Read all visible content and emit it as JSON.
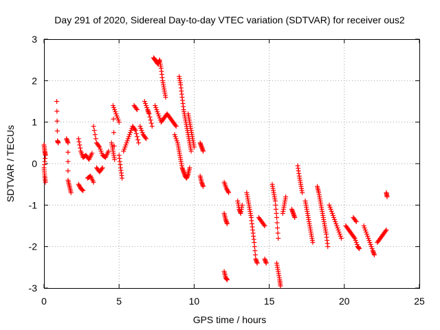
{
  "chart_data": {
    "type": "scatter",
    "title": "Day 291 of 2020, Sidereal Day-to-day VTEC variation (SDTVAR) for receiver ous2",
    "xlabel": "GPS time / hours",
    "ylabel": "SDTVAR / TECUs",
    "xlim": [
      0,
      25
    ],
    "ylim": [
      -3,
      3
    ],
    "xticks": [
      0,
      5,
      10,
      15,
      20,
      25
    ],
    "yticks": [
      -3,
      -2,
      -1,
      0,
      1,
      2,
      3
    ],
    "grid": true,
    "marker": "+",
    "series": [
      {
        "name": "SDTVAR",
        "color": "#ff0000",
        "segments": [
          [
            [
              0.0,
              0.45
            ],
            [
              0.05,
              0.3
            ],
            [
              0.1,
              0.2
            ],
            [
              0.0,
              -0.1
            ],
            [
              0.05,
              -0.3
            ],
            [
              0.1,
              -0.45
            ]
          ],
          [
            [
              0.85,
              1.5
            ],
            [
              0.9,
              0.55
            ],
            [
              0.95,
              0.5
            ]
          ],
          [
            [
              1.5,
              0.6
            ],
            [
              1.6,
              0.5
            ],
            [
              1.6,
              -0.4
            ],
            [
              1.7,
              -0.55
            ],
            [
              1.8,
              -0.7
            ]
          ],
          [
            [
              2.3,
              -0.5
            ],
            [
              2.45,
              -0.6
            ],
            [
              2.6,
              -0.65
            ]
          ],
          [
            [
              2.3,
              0.6
            ],
            [
              2.45,
              0.3
            ],
            [
              2.6,
              0.15
            ],
            [
              2.8,
              0.2
            ],
            [
              3.0,
              0.1
            ],
            [
              3.2,
              0.25
            ]
          ],
          [
            [
              2.9,
              -0.35
            ],
            [
              3.1,
              -0.3
            ],
            [
              3.3,
              -0.45
            ]
          ],
          [
            [
              3.3,
              0.9
            ],
            [
              3.5,
              0.5
            ],
            [
              3.7,
              0.4
            ],
            [
              3.9,
              0.2
            ],
            [
              4.1,
              0.15
            ],
            [
              4.3,
              0.3
            ]
          ],
          [
            [
              3.5,
              -0.1
            ],
            [
              3.7,
              -0.2
            ],
            [
              3.9,
              -0.1
            ]
          ],
          [
            [
              4.5,
              0.5
            ],
            [
              4.6,
              0.3
            ],
            [
              4.7,
              0.1
            ],
            [
              4.6,
              1.4
            ],
            [
              4.8,
              1.2
            ],
            [
              5.0,
              1.0
            ]
          ],
          [
            [
              5.0,
              0.2
            ],
            [
              5.1,
              -0.1
            ],
            [
              5.2,
              -0.35
            ]
          ],
          [
            [
              5.3,
              0.3
            ],
            [
              5.5,
              0.5
            ],
            [
              5.7,
              0.7
            ],
            [
              5.9,
              0.9
            ],
            [
              6.1,
              0.8
            ],
            [
              6.3,
              0.5
            ]
          ],
          [
            [
              6.0,
              1.4
            ],
            [
              6.2,
              1.3
            ]
          ],
          [
            [
              6.4,
              0.9
            ],
            [
              6.6,
              0.7
            ],
            [
              6.8,
              0.6
            ]
          ],
          [
            [
              6.7,
              1.5
            ],
            [
              6.9,
              1.3
            ],
            [
              7.0,
              1.2
            ],
            [
              7.2,
              0.9
            ]
          ],
          [
            [
              7.3,
              2.55
            ],
            [
              7.4,
              2.5
            ],
            [
              7.5,
              2.45
            ],
            [
              7.6,
              2.4
            ],
            [
              7.7,
              2.5
            ],
            [
              7.8,
              2.3
            ],
            [
              7.9,
              2.0
            ],
            [
              8.0,
              1.8
            ],
            [
              8.1,
              1.6
            ]
          ],
          [
            [
              7.4,
              1.4
            ],
            [
              7.6,
              1.2
            ],
            [
              7.8,
              1.0
            ],
            [
              8.0,
              1.1
            ],
            [
              8.2,
              1.2
            ],
            [
              8.4,
              1.1
            ],
            [
              8.6,
              1.0
            ],
            [
              8.8,
              0.9
            ]
          ],
          [
            [
              8.7,
              0.7
            ],
            [
              8.9,
              0.5
            ],
            [
              9.0,
              0.3
            ],
            [
              9.1,
              0.1
            ],
            [
              9.2,
              -0.1
            ],
            [
              9.3,
              -0.2
            ],
            [
              9.4,
              -0.3
            ],
            [
              9.5,
              -0.35
            ],
            [
              9.6,
              -0.25
            ],
            [
              9.7,
              -0.1
            ]
          ],
          [
            [
              9.0,
              2.1
            ],
            [
              9.1,
              1.9
            ],
            [
              9.2,
              1.6
            ],
            [
              9.3,
              1.3
            ],
            [
              9.4,
              1.1
            ],
            [
              9.5,
              0.9
            ],
            [
              9.6,
              0.7
            ],
            [
              9.7,
              0.5
            ],
            [
              9.8,
              0.3
            ]
          ],
          [
            [
              9.6,
              1.2
            ],
            [
              9.7,
              1.0
            ],
            [
              9.8,
              0.8
            ],
            [
              9.9,
              0.6
            ],
            [
              10.0,
              0.4
            ]
          ],
          [
            [
              10.4,
              0.5
            ],
            [
              10.5,
              0.4
            ],
            [
              10.6,
              0.3
            ]
          ],
          [
            [
              10.4,
              -0.3
            ],
            [
              10.5,
              -0.45
            ],
            [
              10.6,
              -0.55
            ]
          ],
          [
            [
              12.0,
              -1.2
            ],
            [
              12.1,
              -1.35
            ],
            [
              12.2,
              -1.45
            ]
          ],
          [
            [
              12.0,
              -2.6
            ],
            [
              12.1,
              -2.75
            ],
            [
              12.2,
              -2.8
            ]
          ],
          [
            [
              12.0,
              -0.45
            ],
            [
              12.15,
              -0.6
            ],
            [
              12.3,
              -0.7
            ]
          ],
          [
            [
              12.9,
              -0.9
            ],
            [
              13.0,
              -1.1
            ],
            [
              13.1,
              -1.2
            ],
            [
              13.2,
              -1.0
            ]
          ],
          [
            [
              13.5,
              -0.7
            ],
            [
              13.6,
              -0.9
            ],
            [
              13.7,
              -1.1
            ],
            [
              13.8,
              -1.3
            ],
            [
              13.9,
              -1.6
            ],
            [
              14.0,
              -1.9
            ],
            [
              14.1,
              -2.3
            ],
            [
              14.2,
              -2.4
            ]
          ],
          [
            [
              14.3,
              -1.3
            ],
            [
              14.5,
              -1.4
            ],
            [
              14.7,
              -1.5
            ]
          ],
          [
            [
              14.7,
              -2.3
            ],
            [
              14.8,
              -2.4
            ]
          ],
          [
            [
              15.2,
              -0.5
            ],
            [
              15.3,
              -0.7
            ],
            [
              15.4,
              -0.9
            ],
            [
              15.5,
              -1.3
            ],
            [
              15.6,
              -1.8
            ]
          ],
          [
            [
              15.5,
              -2.4
            ],
            [
              15.6,
              -2.6
            ],
            [
              15.7,
              -2.8
            ],
            [
              15.75,
              -2.95
            ]
          ],
          [
            [
              15.9,
              -1.2
            ],
            [
              16.0,
              -1.0
            ],
            [
              16.1,
              -0.8
            ]
          ],
          [
            [
              16.5,
              -1.1
            ],
            [
              16.6,
              -1.2
            ],
            [
              16.7,
              -1.3
            ]
          ],
          [
            [
              16.9,
              -0.05
            ],
            [
              17.0,
              -0.3
            ],
            [
              17.1,
              -0.5
            ],
            [
              17.2,
              -0.7
            ]
          ],
          [
            [
              17.4,
              -0.9
            ],
            [
              17.5,
              -1.1
            ],
            [
              17.6,
              -1.3
            ],
            [
              17.7,
              -1.5
            ],
            [
              17.8,
              -1.7
            ],
            [
              17.9,
              -1.9
            ]
          ],
          [
            [
              18.2,
              -0.55
            ],
            [
              18.3,
              -0.7
            ],
            [
              18.4,
              -0.9
            ],
            [
              18.5,
              -1.1
            ],
            [
              18.6,
              -1.3
            ],
            [
              18.7,
              -1.5
            ],
            [
              18.8,
              -1.7
            ],
            [
              18.9,
              -2.0
            ]
          ],
          [
            [
              19.0,
              -1.0
            ],
            [
              19.2,
              -1.2
            ],
            [
              19.4,
              -1.4
            ],
            [
              19.6,
              -1.6
            ],
            [
              19.8,
              -1.8
            ]
          ],
          [
            [
              20.1,
              -1.5
            ],
            [
              20.3,
              -1.6
            ],
            [
              20.5,
              -1.7
            ],
            [
              20.7,
              -1.8
            ],
            [
              20.9,
              -2.0
            ],
            [
              21.0,
              -2.05
            ]
          ],
          [
            [
              20.6,
              -1.3
            ],
            [
              20.8,
              -1.4
            ]
          ],
          [
            [
              21.3,
              -1.5
            ],
            [
              21.5,
              -1.7
            ],
            [
              21.7,
              -1.9
            ],
            [
              21.9,
              -2.1
            ],
            [
              22.0,
              -2.2
            ]
          ],
          [
            [
              22.2,
              -1.9
            ],
            [
              22.4,
              -1.8
            ],
            [
              22.6,
              -1.7
            ],
            [
              22.8,
              -1.6
            ]
          ],
          [
            [
              22.8,
              -0.7
            ],
            [
              22.85,
              -0.8
            ]
          ]
        ]
      }
    ]
  }
}
